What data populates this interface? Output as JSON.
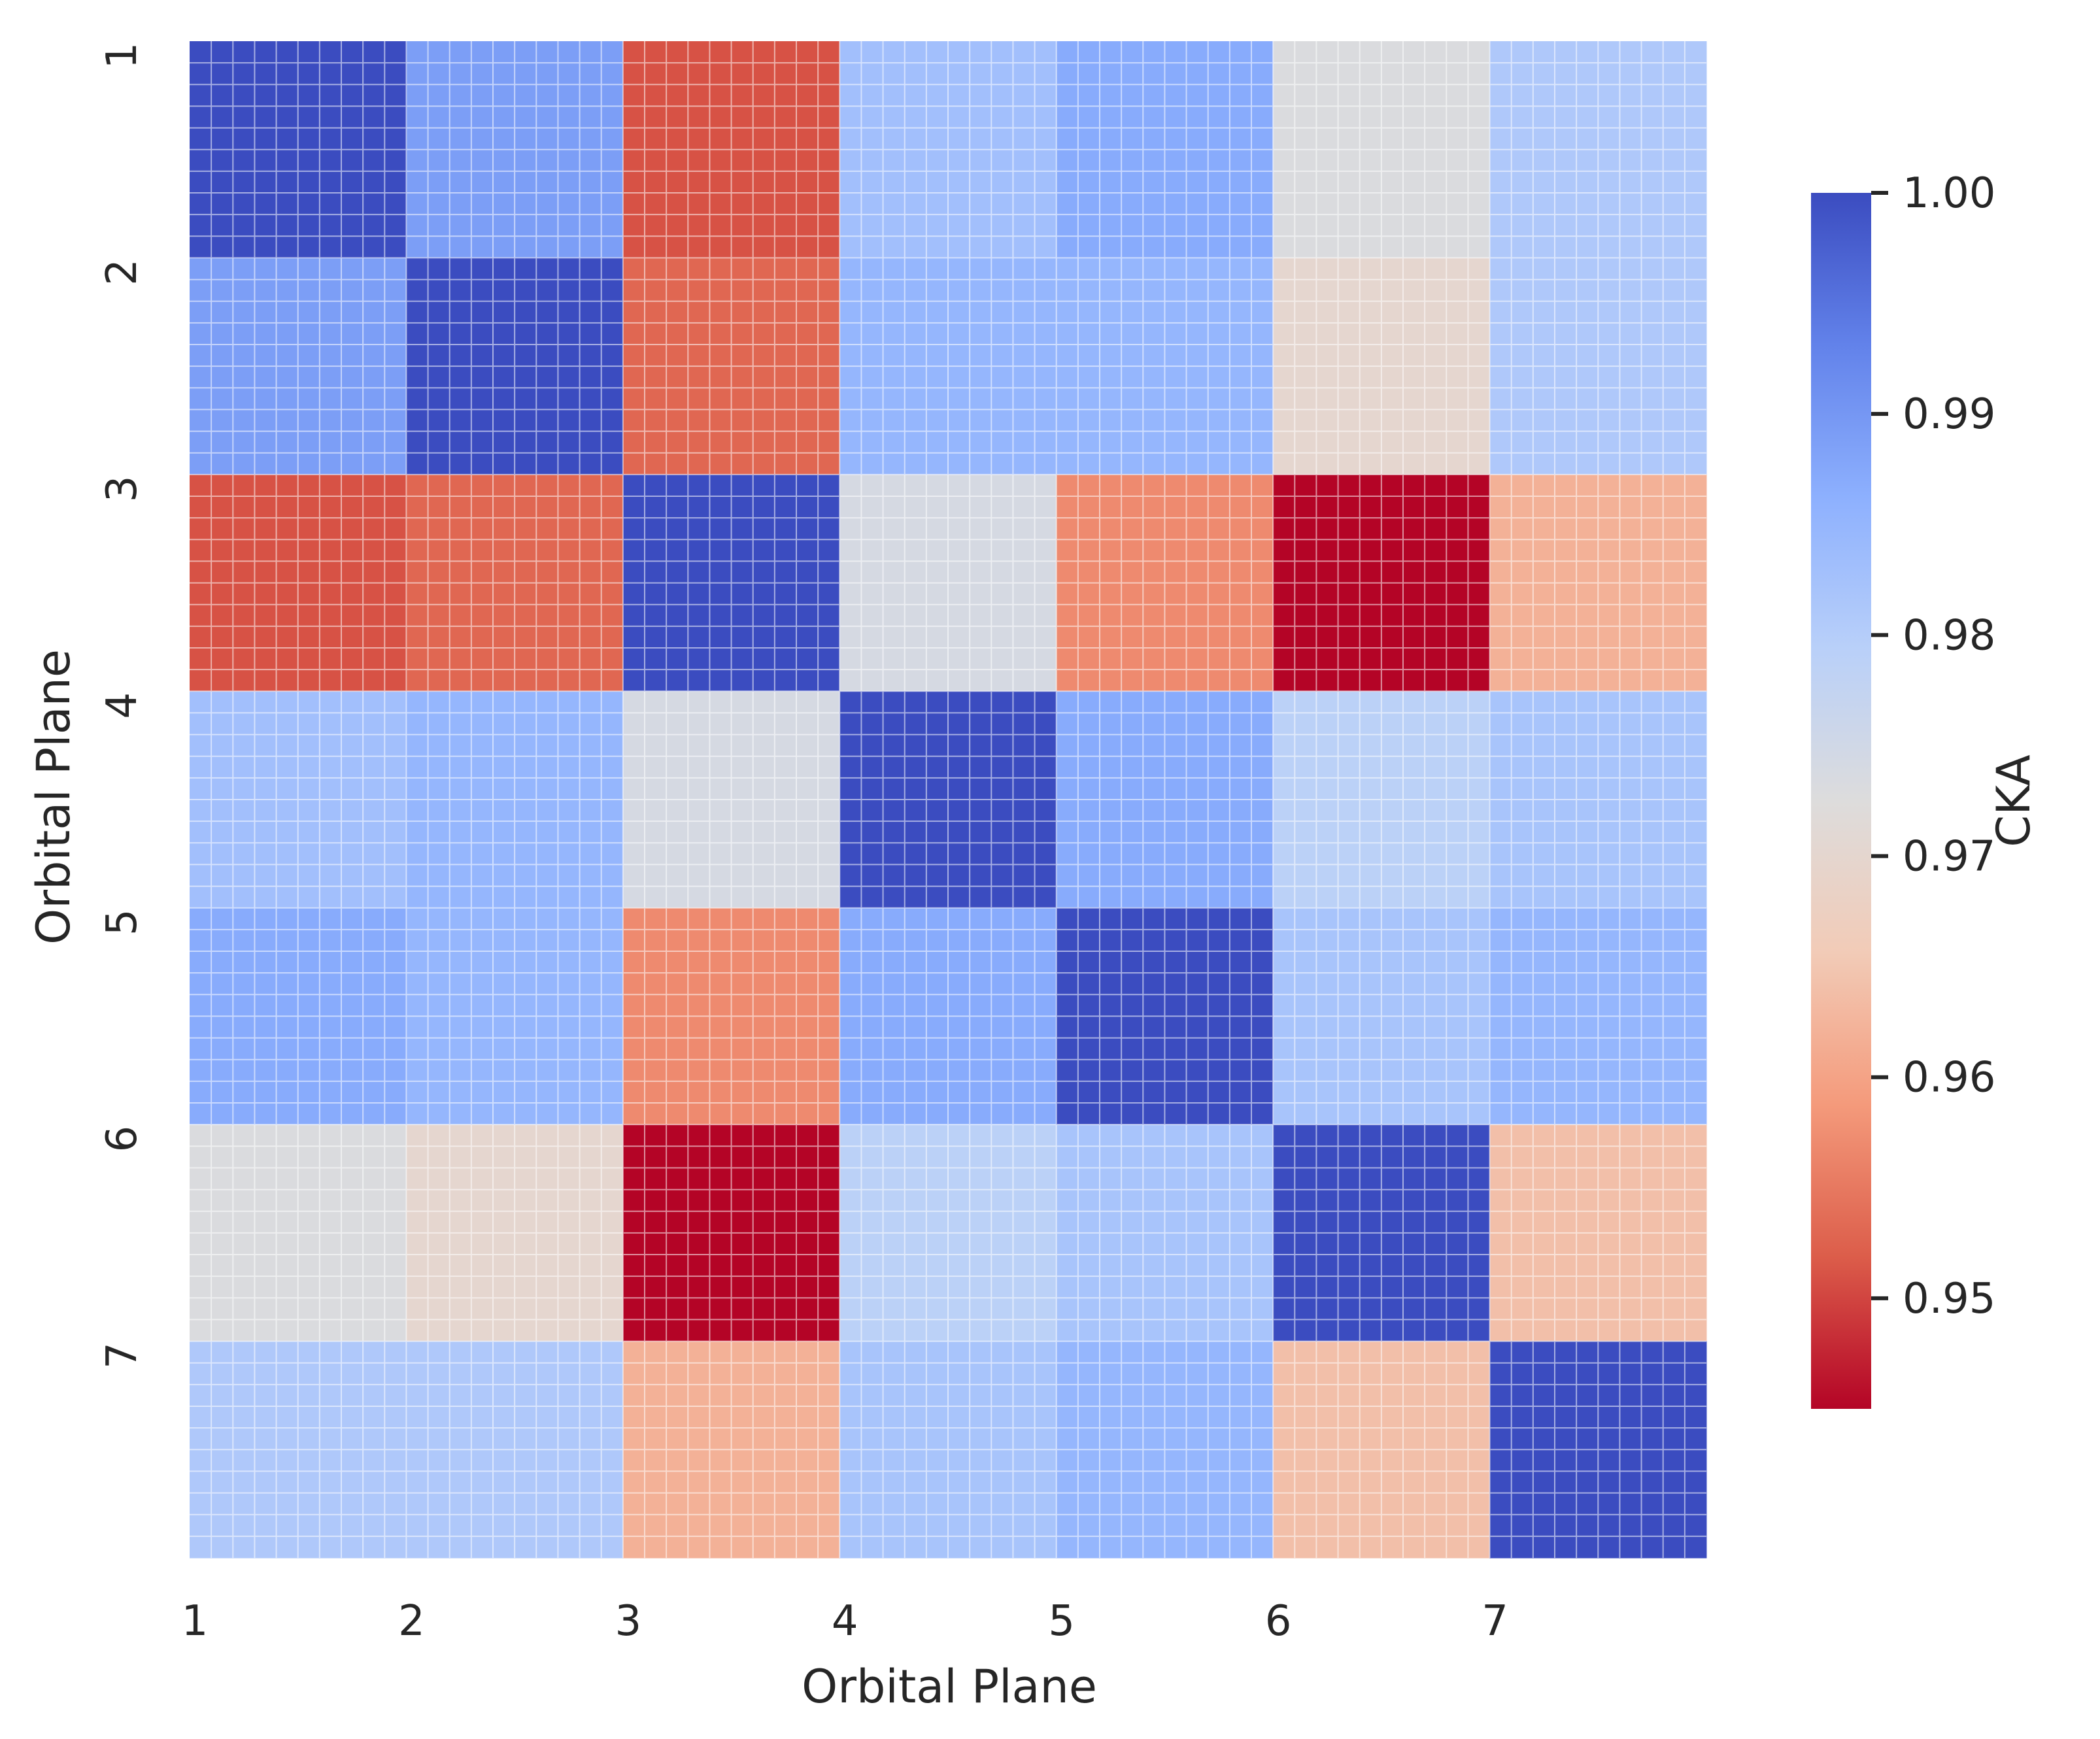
{
  "chart_data": {
    "type": "heatmap",
    "title": "",
    "xlabel": "Orbital Plane",
    "ylabel": "Orbital Plane",
    "x_tick_labels": [
      "1",
      "2",
      "3",
      "4",
      "5",
      "6",
      "7"
    ],
    "y_tick_labels": [
      "1",
      "2",
      "3",
      "4",
      "5",
      "6",
      "7"
    ],
    "matrix": [
      [
        1.0,
        0.989,
        0.951,
        0.983,
        0.987,
        0.973,
        0.981
      ],
      [
        0.989,
        1.0,
        0.953,
        0.985,
        0.985,
        0.97,
        0.981
      ],
      [
        0.951,
        0.953,
        1.0,
        0.974,
        0.957,
        0.945,
        0.962
      ],
      [
        0.983,
        0.985,
        0.974,
        1.0,
        0.987,
        0.979,
        0.982
      ],
      [
        0.987,
        0.985,
        0.957,
        0.987,
        1.0,
        0.982,
        0.985
      ],
      [
        0.973,
        0.97,
        0.945,
        0.979,
        0.982,
        1.0,
        0.964
      ],
      [
        0.981,
        0.981,
        0.962,
        0.982,
        0.985,
        0.964,
        1.0
      ]
    ],
    "colorbar": {
      "label": "CKA",
      "colormap": "coolwarm_r",
      "vmin": 0.945,
      "vmax": 1.0,
      "ticks": [
        0.95,
        0.96,
        0.97,
        0.98,
        0.99,
        1.0
      ],
      "tick_labels": [
        "0.95",
        "0.96",
        "0.97",
        "0.98",
        "0.99",
        "1.00"
      ]
    },
    "grid": true
  },
  "colors": {
    "coolwarm_stops": [
      "#b40426",
      "#dc5d4a",
      "#f49a7b",
      "#f2cbb7",
      "#dddcdc",
      "#b9d0f9",
      "#8db0fe",
      "#6282ea",
      "#3b4cc0"
    ],
    "text": "#262626",
    "background": "#ffffff"
  }
}
